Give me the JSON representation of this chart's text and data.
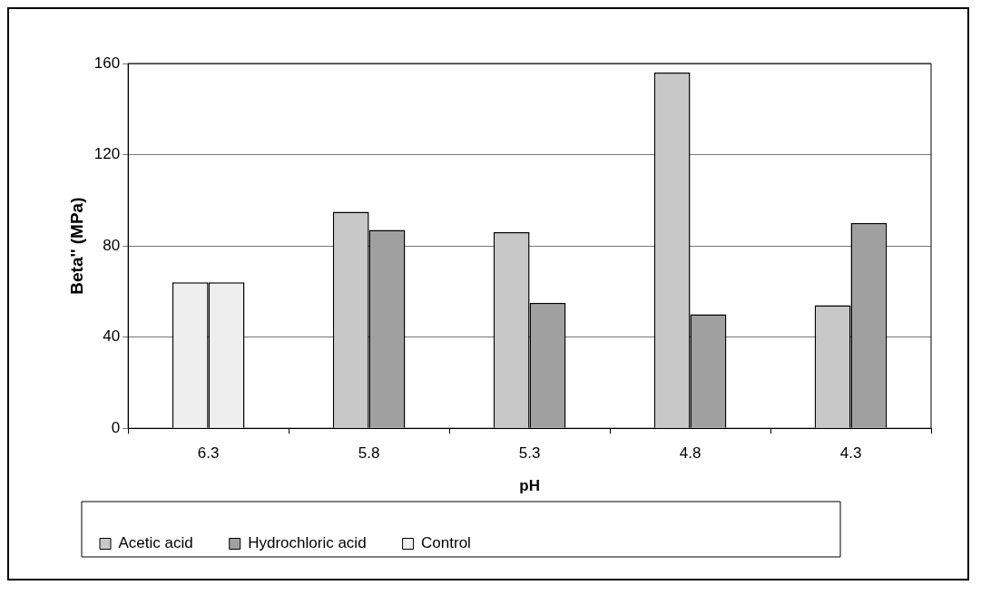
{
  "chart_data": {
    "type": "bar",
    "xlabel": "pH",
    "ylabel": "Beta'' (MPa)",
    "categories": [
      "6.3",
      "5.8",
      "5.3",
      "4.8",
      "4.3"
    ],
    "series": [
      {
        "name": "Acetic acid",
        "color": "#c8c8c8",
        "values": [
          null,
          95,
          86,
          156,
          54
        ]
      },
      {
        "name": "Hydrochloric acid",
        "color": "#a0a0a0",
        "values": [
          null,
          87,
          55,
          50,
          90
        ]
      },
      {
        "name": "Control",
        "color": "#eeeeee",
        "values": [
          64,
          null,
          null,
          null,
          null
        ]
      },
      {
        "color": "#eeeeee",
        "values": [
          64,
          null,
          null,
          null,
          null
        ]
      }
    ],
    "ylim": [
      0,
      160
    ],
    "yticks": [
      0,
      40,
      80,
      120,
      160
    ],
    "grid": "y",
    "legend": "bottom"
  }
}
